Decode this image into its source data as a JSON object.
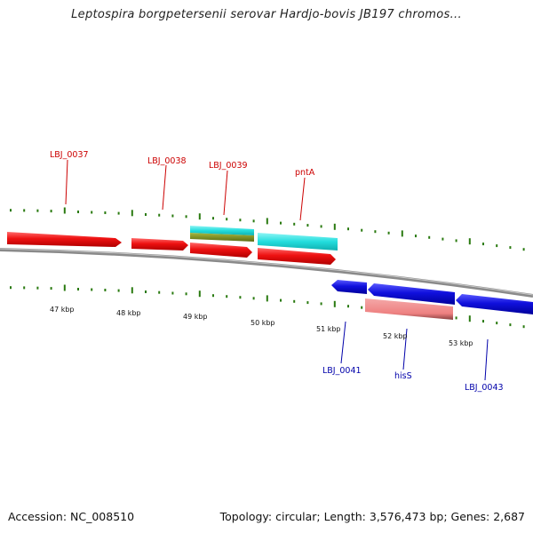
{
  "title": "Leptospira borgpetersenii serovar Hardjo-bovis JB197 chromos...",
  "footer": {
    "accession": "Accession: NC_008510",
    "summary": "Topology: circular; Length: 3,576,473 bp; Genes: 2,687"
  },
  "colors": {
    "forward_gene": "#ee1111",
    "reverse_gene": "#1010dd",
    "rna_feature": "#22dddd",
    "olive_feature": "#7a8a1a",
    "pink_feature": "#ee8080",
    "backbone": "#888888",
    "tick": "#2a7a10",
    "forward_label": "#cc0000",
    "reverse_label": "#0000aa"
  },
  "kbp_labels": [
    "47 kbp",
    "48 kbp",
    "49 kbp",
    "50 kbp",
    "51 kbp",
    "52 kbp",
    "53 kbp"
  ],
  "forward_labels": [
    "LBJ_0037",
    "LBJ_0038",
    "LBJ_0039",
    "pntA"
  ],
  "reverse_labels": [
    "LBJ_0041",
    "hisS",
    "LBJ_0043"
  ]
}
